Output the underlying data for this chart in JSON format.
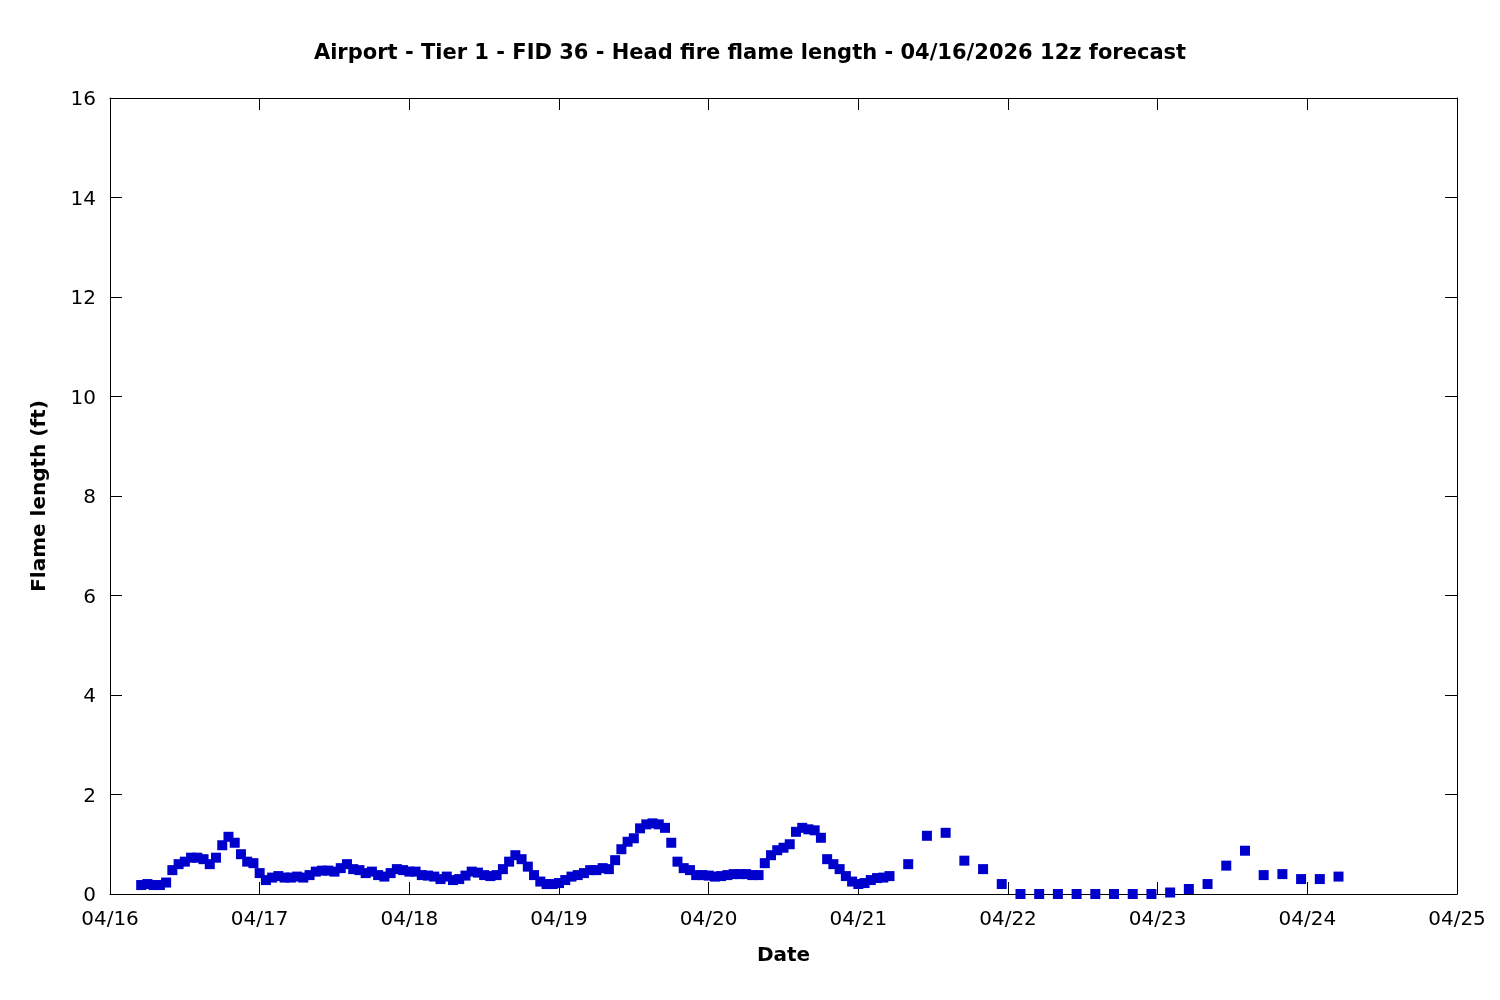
{
  "chart_data": {
    "type": "scatter",
    "title": "Airport - Tier 1 - FID 36 - Head fire flame length - 04/16/2026 12z forecast",
    "xlabel": "Date",
    "ylabel": "Flame length (ft)",
    "xlim": [
      "2026-04-16",
      "2026-04-25"
    ],
    "xticks": [
      {
        "value": "2026-04-16",
        "label": "04/16"
      },
      {
        "value": "2026-04-17",
        "label": "04/17"
      },
      {
        "value": "2026-04-18",
        "label": "04/18"
      },
      {
        "value": "2026-04-19",
        "label": "04/19"
      },
      {
        "value": "2026-04-20",
        "label": "04/20"
      },
      {
        "value": "2026-04-21",
        "label": "04/21"
      },
      {
        "value": "2026-04-22",
        "label": "04/22"
      },
      {
        "value": "2026-04-23",
        "label": "04/23"
      },
      {
        "value": "2026-04-24",
        "label": "04/24"
      },
      {
        "value": "2026-04-25",
        "label": "04/25"
      }
    ],
    "ylim": [
      0,
      16
    ],
    "yticks": [
      0,
      2,
      4,
      6,
      8,
      10,
      12,
      14,
      16
    ],
    "grid": false,
    "marker": "square",
    "series": [
      {
        "color": "#0000cc",
        "x": [
          "2026-04-16T05:00",
          "2026-04-16T06:00",
          "2026-04-16T07:00",
          "2026-04-16T08:00",
          "2026-04-16T09:00",
          "2026-04-16T10:00",
          "2026-04-16T11:00",
          "2026-04-16T12:00",
          "2026-04-16T13:00",
          "2026-04-16T14:00",
          "2026-04-16T15:00",
          "2026-04-16T16:00",
          "2026-04-16T17:00",
          "2026-04-16T18:00",
          "2026-04-16T19:00",
          "2026-04-16T20:00",
          "2026-04-16T21:00",
          "2026-04-16T22:00",
          "2026-04-16T23:00",
          "2026-04-17T00:00",
          "2026-04-17T01:00",
          "2026-04-17T02:00",
          "2026-04-17T03:00",
          "2026-04-17T04:00",
          "2026-04-17T05:00",
          "2026-04-17T06:00",
          "2026-04-17T07:00",
          "2026-04-17T08:00",
          "2026-04-17T09:00",
          "2026-04-17T10:00",
          "2026-04-17T11:00",
          "2026-04-17T12:00",
          "2026-04-17T13:00",
          "2026-04-17T14:00",
          "2026-04-17T15:00",
          "2026-04-17T16:00",
          "2026-04-17T17:00",
          "2026-04-17T18:00",
          "2026-04-17T19:00",
          "2026-04-17T20:00",
          "2026-04-17T21:00",
          "2026-04-17T22:00",
          "2026-04-17T23:00",
          "2026-04-18T00:00",
          "2026-04-18T01:00",
          "2026-04-18T02:00",
          "2026-04-18T03:00",
          "2026-04-18T04:00",
          "2026-04-18T05:00",
          "2026-04-18T06:00",
          "2026-04-18T07:00",
          "2026-04-18T08:00",
          "2026-04-18T09:00",
          "2026-04-18T10:00",
          "2026-04-18T11:00",
          "2026-04-18T12:00",
          "2026-04-18T13:00",
          "2026-04-18T14:00",
          "2026-04-18T15:00",
          "2026-04-18T16:00",
          "2026-04-18T17:00",
          "2026-04-18T18:00",
          "2026-04-18T19:00",
          "2026-04-18T20:00",
          "2026-04-18T21:00",
          "2026-04-18T22:00",
          "2026-04-18T23:00",
          "2026-04-19T00:00",
          "2026-04-19T01:00",
          "2026-04-19T02:00",
          "2026-04-19T03:00",
          "2026-04-19T04:00",
          "2026-04-19T05:00",
          "2026-04-19T06:00",
          "2026-04-19T07:00",
          "2026-04-19T08:00",
          "2026-04-19T09:00",
          "2026-04-19T10:00",
          "2026-04-19T11:00",
          "2026-04-19T12:00",
          "2026-04-19T13:00",
          "2026-04-19T14:00",
          "2026-04-19T15:00",
          "2026-04-19T16:00",
          "2026-04-19T17:00",
          "2026-04-19T18:00",
          "2026-04-19T19:00",
          "2026-04-19T20:00",
          "2026-04-19T21:00",
          "2026-04-19T22:00",
          "2026-04-19T23:00",
          "2026-04-20T00:00",
          "2026-04-20T01:00",
          "2026-04-20T02:00",
          "2026-04-20T03:00",
          "2026-04-20T04:00",
          "2026-04-20T05:00",
          "2026-04-20T06:00",
          "2026-04-20T07:00",
          "2026-04-20T08:00",
          "2026-04-20T09:00",
          "2026-04-20T10:00",
          "2026-04-20T11:00",
          "2026-04-20T12:00",
          "2026-04-20T13:00",
          "2026-04-20T14:00",
          "2026-04-20T15:00",
          "2026-04-20T16:00",
          "2026-04-20T17:00",
          "2026-04-20T18:00",
          "2026-04-20T19:00",
          "2026-04-20T20:00",
          "2026-04-20T21:00",
          "2026-04-20T22:00",
          "2026-04-20T23:00",
          "2026-04-21T00:00",
          "2026-04-21T01:00",
          "2026-04-21T02:00",
          "2026-04-21T03:00",
          "2026-04-21T04:00",
          "2026-04-21T05:00",
          "2026-04-21T08:00",
          "2026-04-21T11:00",
          "2026-04-21T14:00",
          "2026-04-21T17:00",
          "2026-04-21T20:00",
          "2026-04-21T23:00",
          "2026-04-22T02:00",
          "2026-04-22T05:00",
          "2026-04-22T08:00",
          "2026-04-22T11:00",
          "2026-04-22T14:00",
          "2026-04-22T17:00",
          "2026-04-22T20:00",
          "2026-04-22T23:00",
          "2026-04-23T02:00",
          "2026-04-23T05:00",
          "2026-04-23T08:00",
          "2026-04-23T11:00",
          "2026-04-23T14:00",
          "2026-04-23T17:00",
          "2026-04-23T20:00",
          "2026-04-23T23:00",
          "2026-04-24T02:00",
          "2026-04-24T05:00"
        ],
        "values": [
          0.18,
          0.2,
          0.18,
          0.18,
          0.23,
          0.48,
          0.6,
          0.65,
          0.73,
          0.73,
          0.7,
          0.6,
          0.73,
          0.98,
          1.15,
          1.03,
          0.8,
          0.65,
          0.62,
          0.42,
          0.28,
          0.33,
          0.36,
          0.33,
          0.33,
          0.35,
          0.33,
          0.38,
          0.45,
          0.47,
          0.47,
          0.45,
          0.52,
          0.6,
          0.5,
          0.48,
          0.42,
          0.45,
          0.38,
          0.35,
          0.42,
          0.5,
          0.48,
          0.45,
          0.45,
          0.38,
          0.37,
          0.35,
          0.3,
          0.35,
          0.28,
          0.3,
          0.37,
          0.45,
          0.43,
          0.38,
          0.36,
          0.38,
          0.5,
          0.65,
          0.78,
          0.7,
          0.55,
          0.38,
          0.25,
          0.2,
          0.2,
          0.22,
          0.28,
          0.35,
          0.38,
          0.42,
          0.48,
          0.48,
          0.52,
          0.5,
          0.68,
          0.9,
          1.05,
          1.12,
          1.32,
          1.4,
          1.42,
          1.4,
          1.33,
          1.03,
          0.65,
          0.52,
          0.48,
          0.38,
          0.38,
          0.37,
          0.35,
          0.36,
          0.38,
          0.4,
          0.4,
          0.4,
          0.38,
          0.38,
          0.62,
          0.78,
          0.88,
          0.93,
          1.0,
          1.25,
          1.33,
          1.3,
          1.28,
          1.13,
          0.7,
          0.6,
          0.5,
          0.36,
          0.25,
          0.2,
          0.22,
          0.28,
          0.32,
          0.33,
          0.36,
          0.6,
          1.17,
          1.23,
          0.67,
          0.5,
          0.2,
          0,
          0,
          0,
          0,
          0,
          0,
          0,
          0,
          0.03,
          0.1,
          0.2,
          0.57,
          0.87,
          0.38,
          0.4,
          0.3,
          0.3,
          0.35
        ]
      }
    ]
  }
}
